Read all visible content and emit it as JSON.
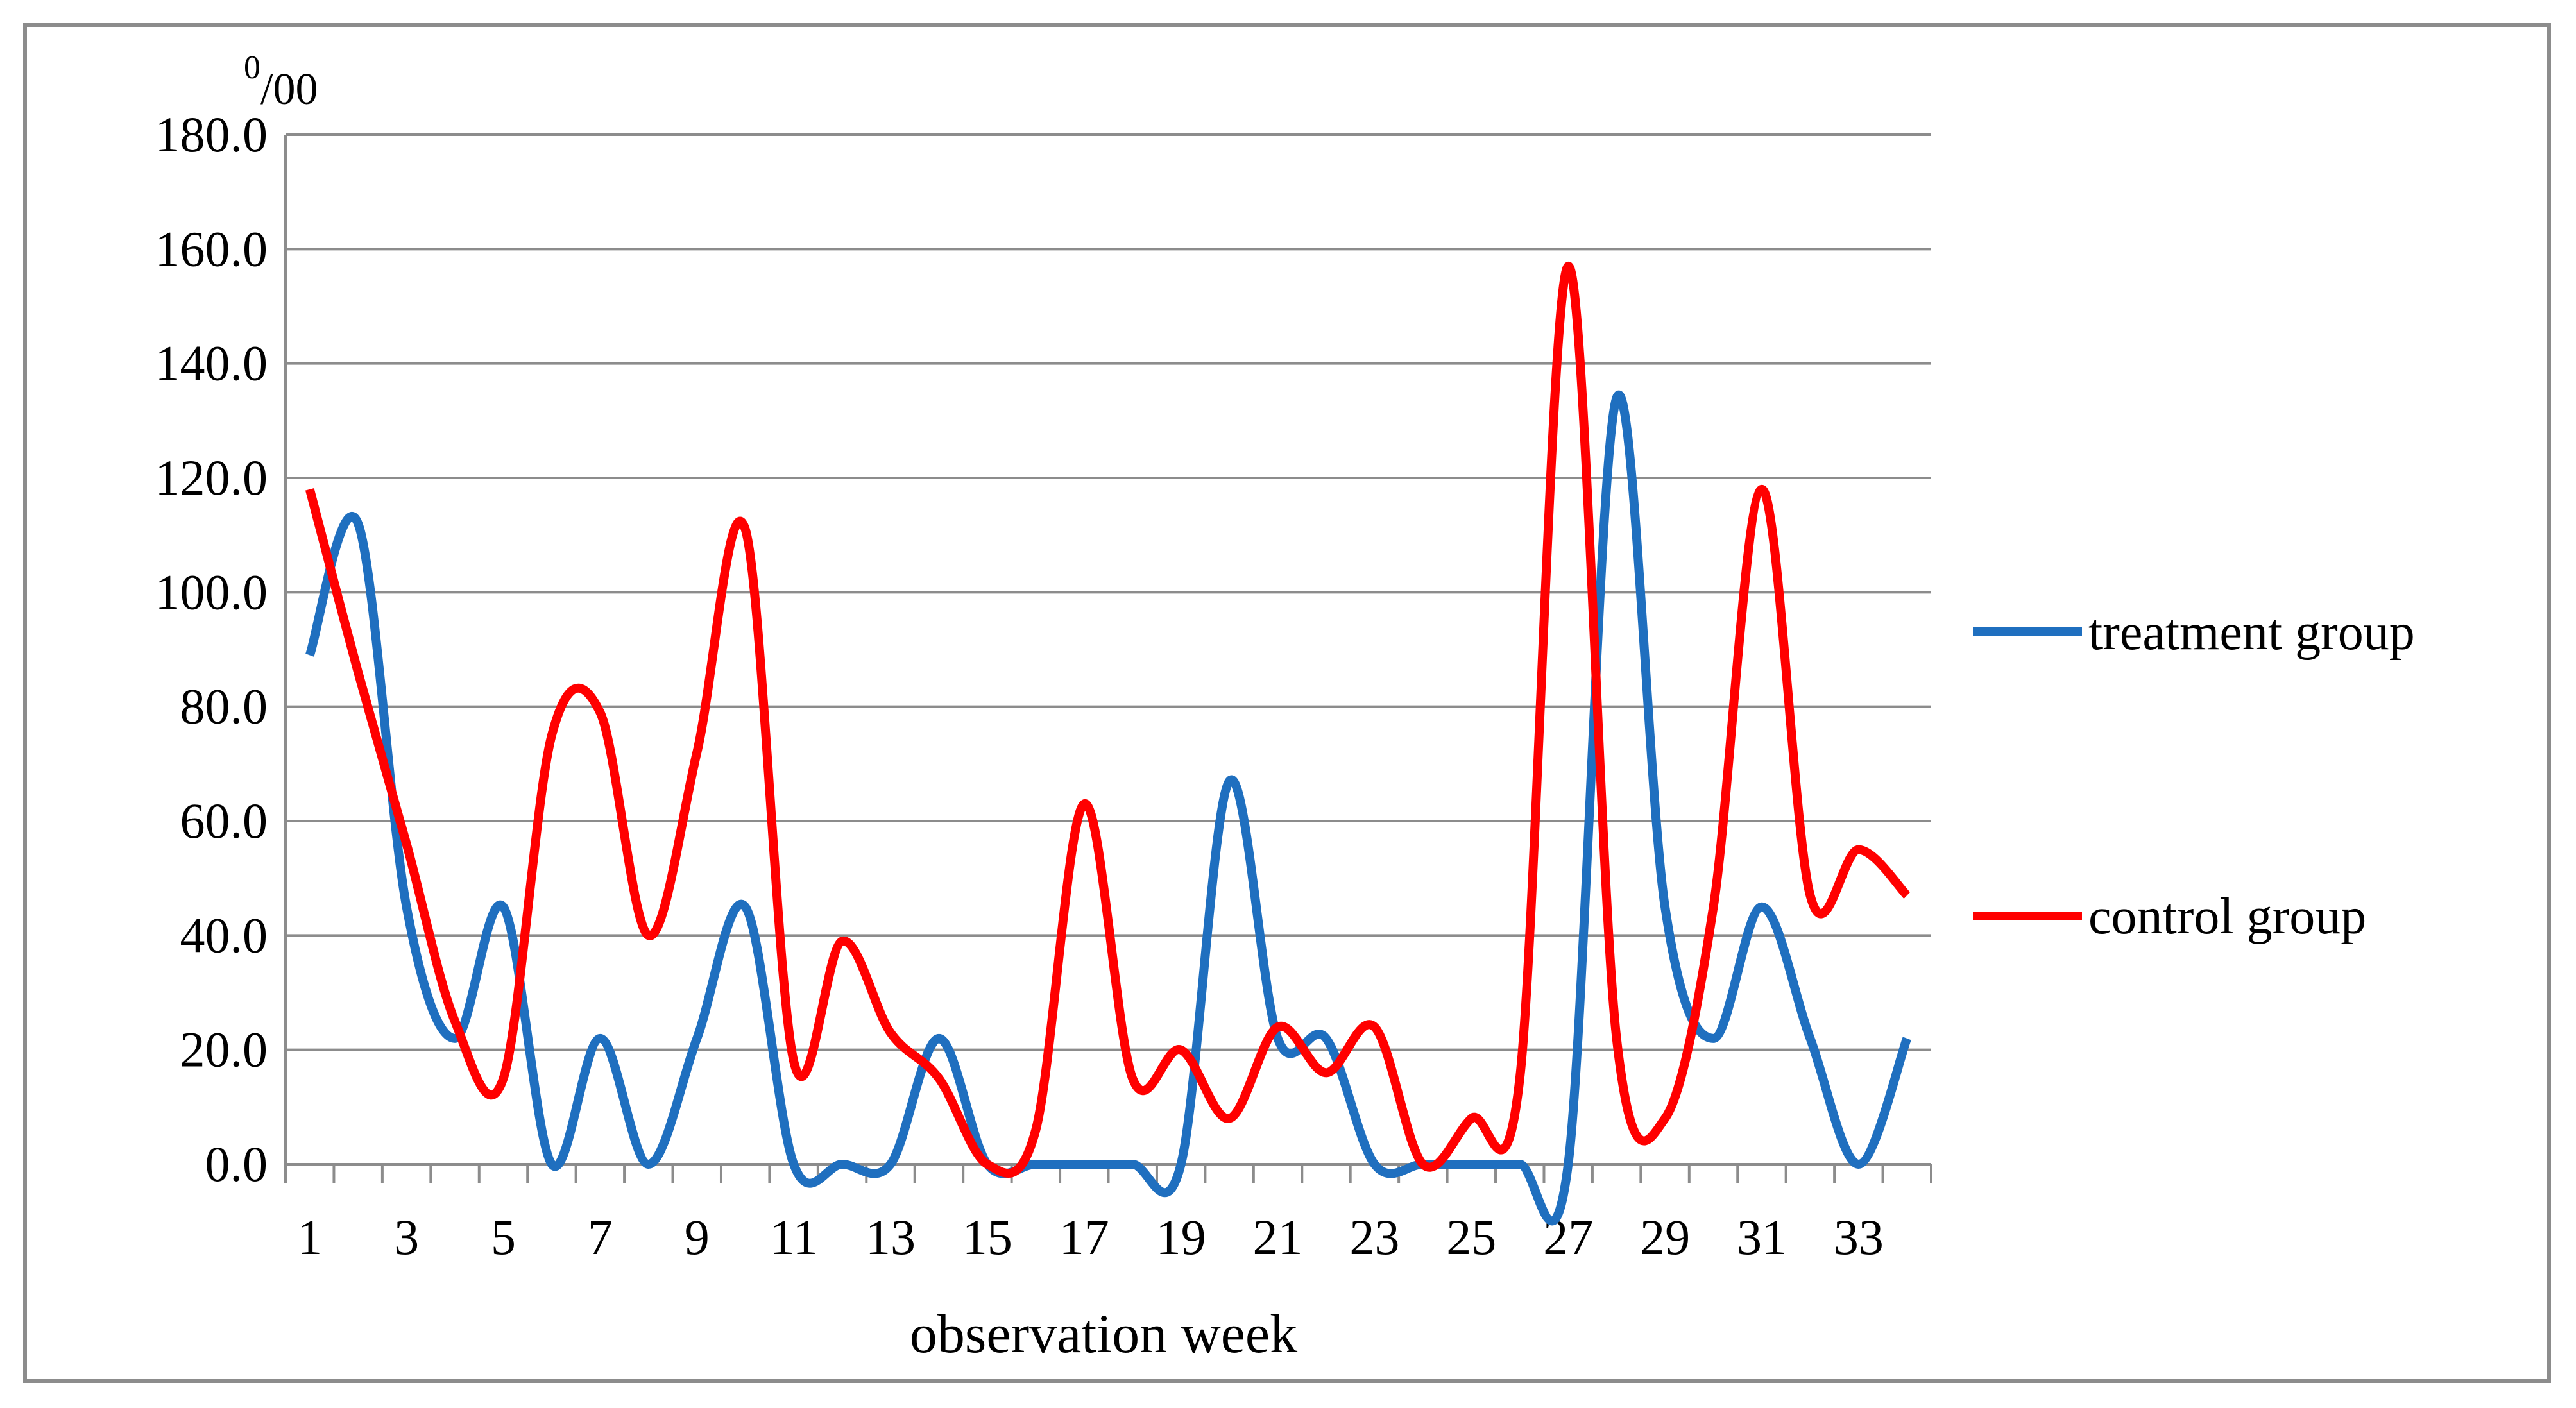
{
  "chart_data": {
    "type": "line",
    "title": "",
    "xlabel": "observation week",
    "ylabel": "",
    "y_unit": {
      "base": "0",
      "rest": "/00"
    },
    "ylim": [
      0,
      180
    ],
    "y_ticks": [
      "0.0",
      "20.0",
      "40.0",
      "60.0",
      "80.0",
      "100.0",
      "120.0",
      "140.0",
      "160.0",
      "180.0"
    ],
    "x": [
      1,
      2,
      3,
      4,
      5,
      6,
      7,
      8,
      9,
      10,
      11,
      12,
      13,
      14,
      15,
      16,
      17,
      18,
      19,
      20,
      21,
      22,
      23,
      24,
      25,
      26,
      27,
      28,
      29,
      30,
      31,
      32,
      33,
      34
    ],
    "x_tick_labels": [
      "1",
      "3",
      "5",
      "7",
      "9",
      "11",
      "13",
      "15",
      "17",
      "19",
      "21",
      "23",
      "25",
      "27",
      "29",
      "31",
      "33"
    ],
    "grid": true,
    "legend_position": "right",
    "series": [
      {
        "name": "treatment group",
        "color": "#1f6fbf",
        "values": [
          89,
          112,
          45,
          22,
          45,
          0,
          22,
          0,
          22,
          45,
          0,
          0,
          0,
          22,
          0,
          0,
          0,
          0,
          0,
          67,
          22,
          22,
          0,
          0,
          0,
          0,
          0,
          134,
          45,
          22,
          45,
          22,
          0,
          22
        ]
      },
      {
        "name": "control group",
        "color": "#ff0000",
        "values": [
          118,
          86,
          56,
          25,
          15,
          75,
          79,
          40,
          72,
          111,
          18,
          39,
          23,
          15,
          0,
          6,
          63,
          15,
          20,
          8,
          24,
          16,
          24,
          0,
          8,
          15,
          157,
          22,
          8,
          45,
          118,
          47,
          55,
          47
        ]
      }
    ]
  }
}
